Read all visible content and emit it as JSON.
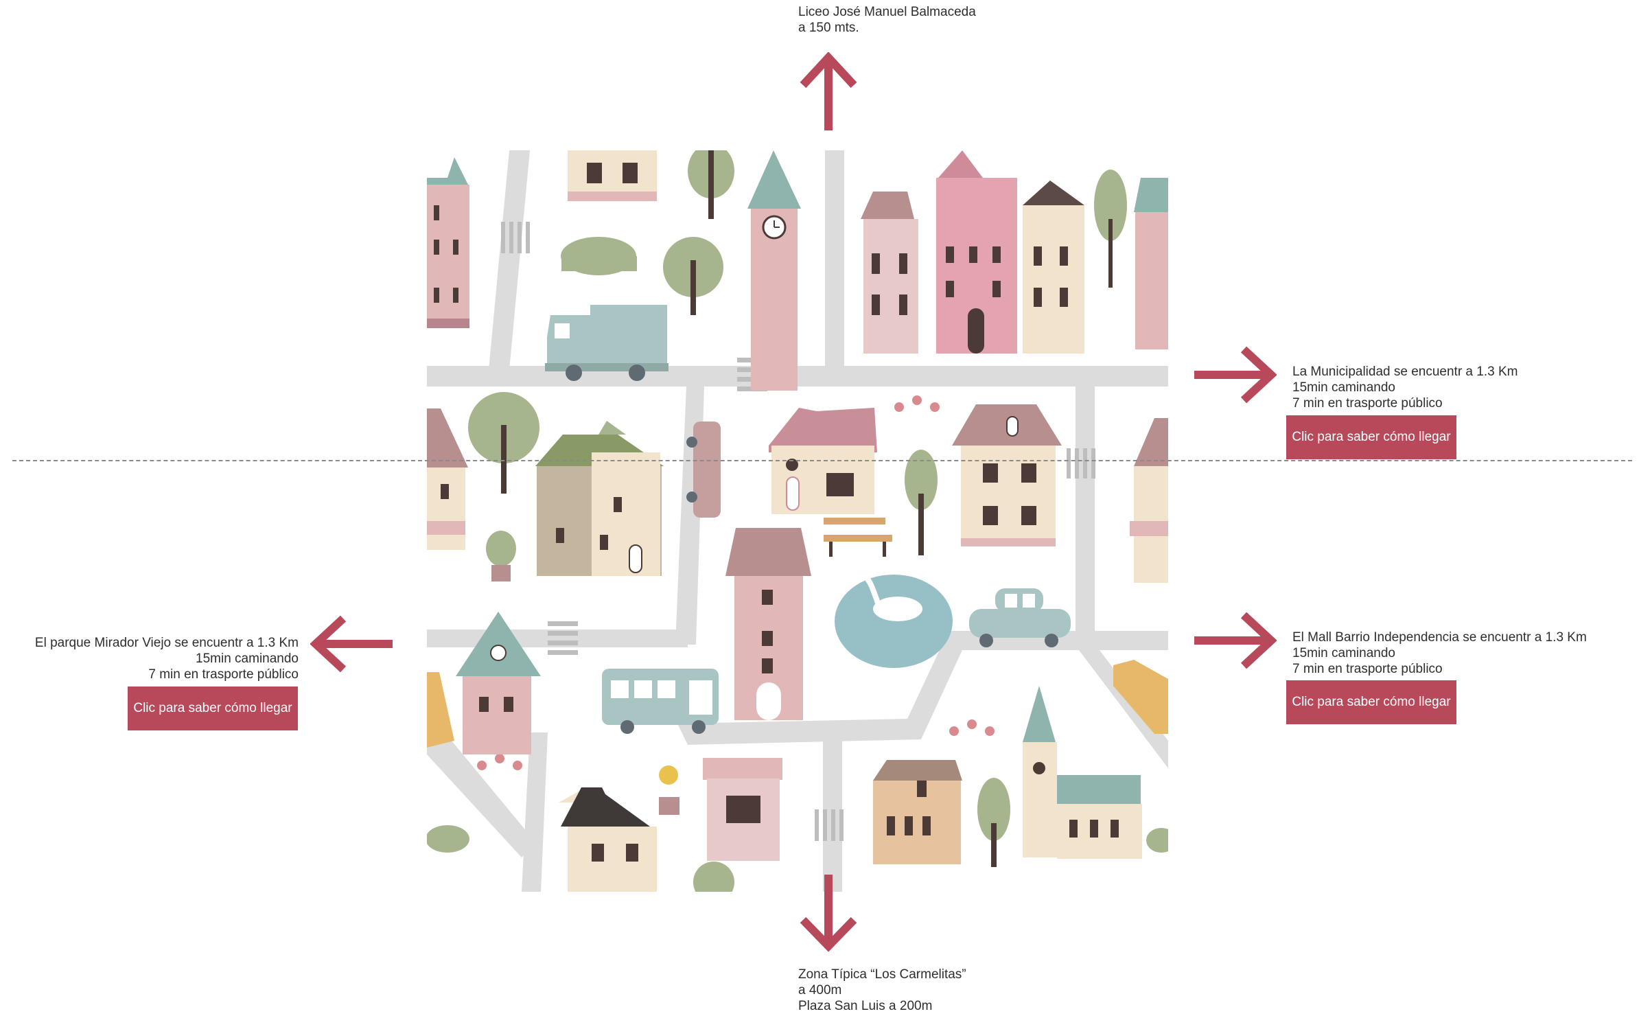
{
  "destinations": {
    "north": {
      "line1": "Liceo José Manuel Balmaceda",
      "line2": "a 150 mts."
    },
    "east_upper": {
      "line1": "La Municipalidad se encuentr a 1.3 Km",
      "line2": "15min caminando",
      "line3": "7 min en trasporte público",
      "button_label": "Clic para saber cómo llegar"
    },
    "east_lower": {
      "line1": "El Mall Barrio Independencia se encuentr a 1.3 Km",
      "line2": "15min caminando",
      "line3": "7 min en trasporte público",
      "button_label": "Clic para saber cómo llegar"
    },
    "west": {
      "line1": "El parque Mirador Viejo se encuentr a 1.3 Km",
      "line2": "15min caminando",
      "line3": "7 min en trasporte público",
      "button_label": "Clic para saber cómo llegar"
    },
    "south": {
      "line1": "Zona Típica “Los Carmelitas”",
      "line2": "a 400m",
      "line3": "Plaza San Luis a 200m"
    }
  },
  "icons": {
    "arrow": "arrow-icon",
    "house": "house-icon",
    "tree": "tree-icon",
    "truck": "truck-icon",
    "bus": "bus-icon",
    "car": "car-icon",
    "swan": "swan-icon",
    "bench": "bench-icon",
    "clock_tower": "clock-tower-icon"
  },
  "colors": {
    "accent": "#b8495b",
    "road": "#dcdcdc",
    "pink": "#e2b7b7",
    "dusty_pink": "#cf9aa2",
    "cream": "#f2e4cc",
    "teal": "#8fb3ad",
    "sage": "#a6b58d",
    "brown": "#4b3a36",
    "lake": "#97bfc6"
  }
}
